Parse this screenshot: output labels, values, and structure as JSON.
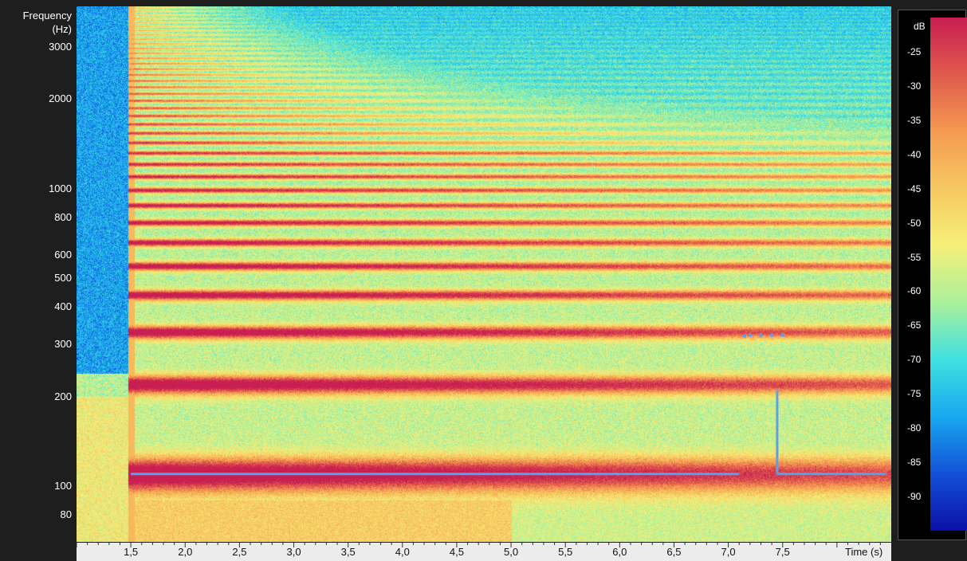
{
  "chart_data": {
    "type": "heatmap",
    "ylabel": "Frequency\n(Hz)",
    "xlabel": "Time (s)",
    "y_scale": "log",
    "y_ticks": [
      80,
      100,
      200,
      300,
      400,
      500,
      600,
      800,
      1000,
      2000,
      3000
    ],
    "x_ticks": [
      "1,5",
      "2,0",
      "2,5",
      "3,0",
      "3,5",
      "4,0",
      "4,5",
      "5,0",
      "5,5",
      "6,0",
      "6,5",
      "7,0",
      "7,5"
    ],
    "x_tick_values": [
      1.5,
      2.0,
      2.5,
      3.0,
      3.5,
      4.0,
      4.5,
      5.0,
      5.5,
      6.0,
      6.5,
      7.0,
      7.5
    ],
    "xlim": [
      1.0,
      8.5
    ],
    "ylim": [
      65,
      4100
    ],
    "onset_time": 1.5,
    "fundamental_hz": 110,
    "harmonic_bands_hz": [
      110,
      220,
      330,
      440,
      550,
      660,
      770,
      880,
      990,
      1100,
      1210,
      1320,
      1430,
      1540,
      1650
    ],
    "pitch_track": {
      "segments": [
        {
          "x": [
            1.5,
            7.1
          ],
          "y": [
            110,
            110
          ]
        },
        {
          "x": [
            7.45,
            7.45
          ],
          "y": [
            110,
            210
          ]
        },
        {
          "x": [
            7.45,
            8.45
          ],
          "y": [
            110,
            110
          ]
        }
      ],
      "marker_points": {
        "x": [
          7.15,
          7.2,
          7.3,
          7.4,
          7.5
        ],
        "y": [
          320,
          322,
          322,
          322,
          322
        ]
      }
    },
    "colorbar": {
      "label": "dB",
      "ticks": [
        -25,
        -30,
        -35,
        -40,
        -45,
        -50,
        -55,
        -60,
        -65,
        -70,
        -75,
        -80,
        -85,
        -90
      ],
      "range": [
        -20,
        -95
      ],
      "colormap": [
        "#c81e52",
        "#e05a4c",
        "#f59a52",
        "#f6c860",
        "#f6f07a",
        "#aaf09a",
        "#40e0e0",
        "#18a8f0",
        "#1450d8",
        "#0a10a8"
      ]
    }
  }
}
